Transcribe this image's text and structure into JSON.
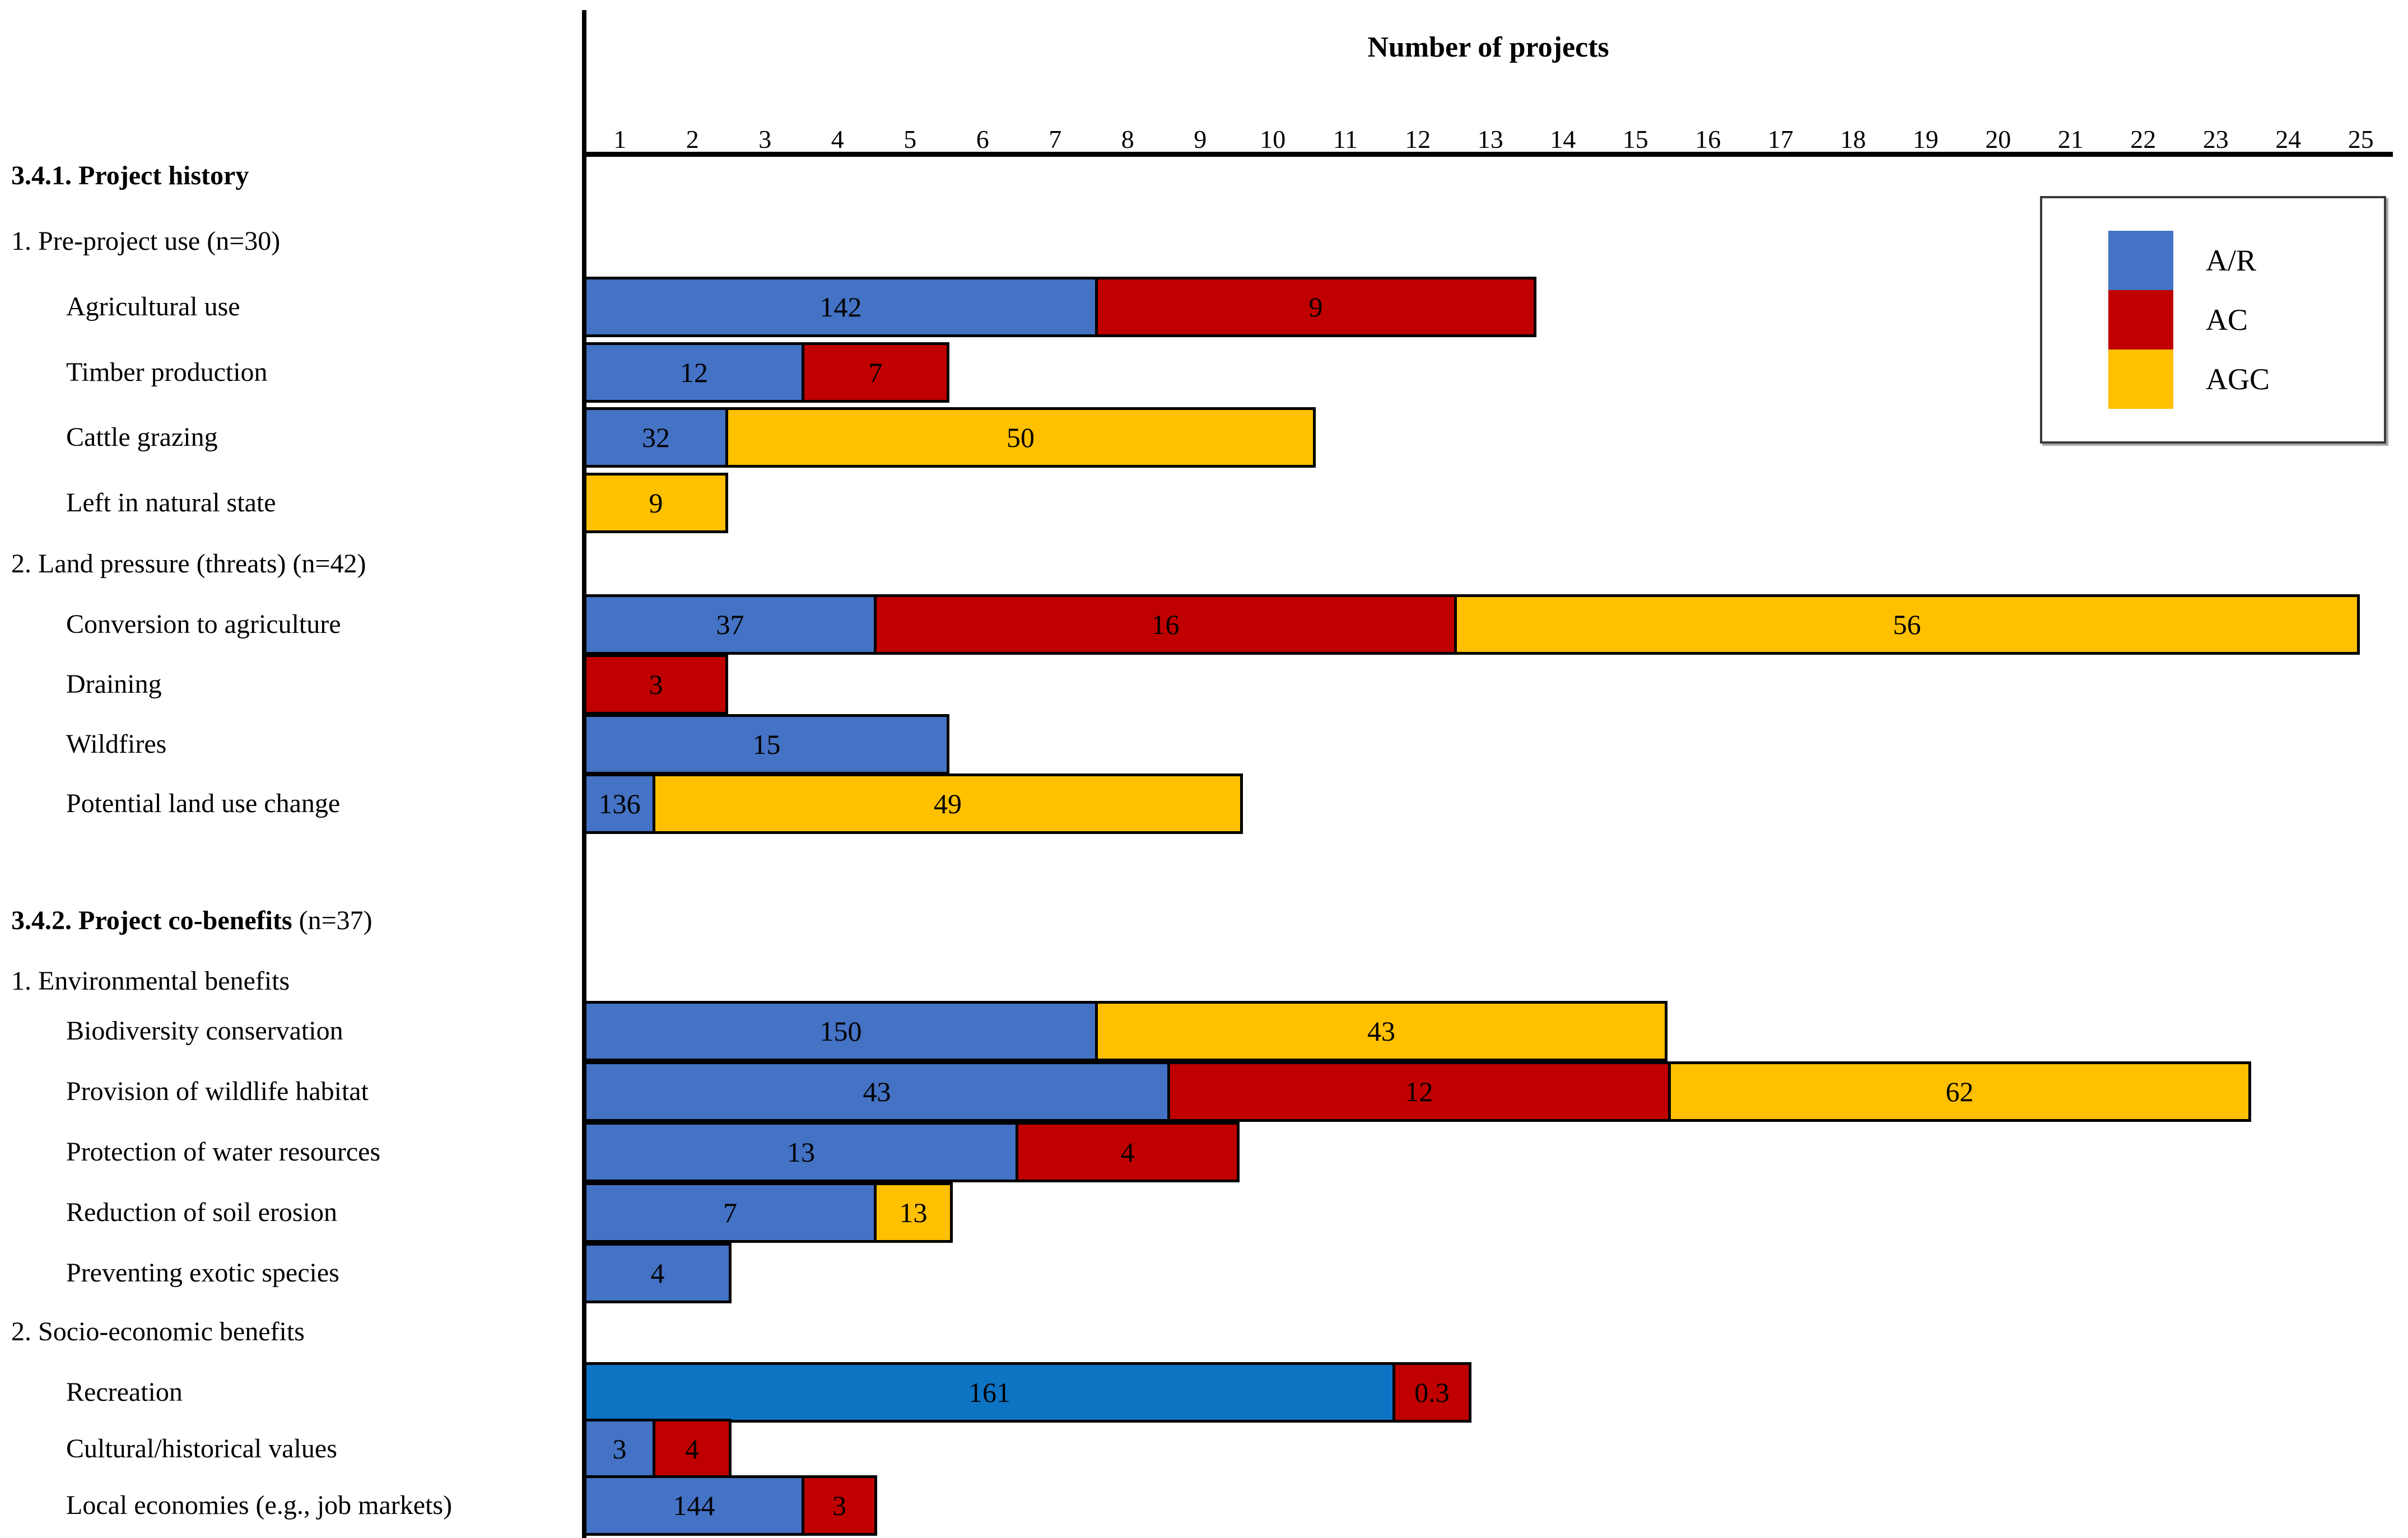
{
  "chart_data": {
    "type": "bar",
    "orientation": "horizontal-stacked",
    "title": "Number of projects",
    "xlabel": "Number of projects",
    "axis": {
      "min": 1,
      "max": 25,
      "ticks": [
        "1",
        "2",
        "3",
        "4",
        "5",
        "6",
        "7",
        "8",
        "9",
        "10",
        "11",
        "12",
        "13",
        "14",
        "15",
        "16",
        "17",
        "18",
        "19",
        "20",
        "21",
        "22",
        "23",
        "24",
        "25"
      ],
      "grid": false
    },
    "legend_position": "top-right",
    "legend": [
      {
        "label": "A/R",
        "color": "#4472C4"
      },
      {
        "label": "AC",
        "color": "#C00000"
      },
      {
        "label": "AGC",
        "color": "#FFC000"
      }
    ],
    "colors": {
      "bar_border": "#000000",
      "recreation_blue": "#0D74C4",
      "axis_line": "#000000"
    },
    "rows": [
      {
        "kind": "section",
        "bold": "3.4.1. Project history",
        "normal": ""
      },
      {
        "kind": "group",
        "label": "1. Pre-project use (n=30)"
      },
      {
        "kind": "bar",
        "label": "Agricultural use",
        "segments": [
          {
            "series": "A/R",
            "value": "142",
            "units": 7.05
          },
          {
            "series": "AC",
            "value": "9",
            "units": 6.05
          }
        ]
      },
      {
        "kind": "bar",
        "label": "Timber production",
        "segments": [
          {
            "series": "A/R",
            "value": "12",
            "units": 3.0
          },
          {
            "series": "AC",
            "value": "7",
            "units": 2.0
          }
        ]
      },
      {
        "kind": "bar",
        "label": "Cattle grazing",
        "segments": [
          {
            "series": "A/R",
            "value": "32",
            "units": 1.95
          },
          {
            "series": "AGC",
            "value": "50",
            "units": 8.1
          }
        ]
      },
      {
        "kind": "bar",
        "label": "Left in natural state",
        "segments": [
          {
            "series": "AGC",
            "value": "9",
            "units": 1.95
          }
        ]
      },
      {
        "kind": "group",
        "label": "2. Land pressure (threats) (n=42)"
      },
      {
        "kind": "bar",
        "label": "Conversion to agriculture",
        "segments": [
          {
            "series": "A/R",
            "value": "37",
            "units": 4.0
          },
          {
            "series": "AC",
            "value": "16",
            "units": 8.0
          },
          {
            "series": "AGC",
            "value": "56",
            "units": 12.45
          }
        ]
      },
      {
        "kind": "bar",
        "label": "Draining",
        "segments": [
          {
            "series": "AC",
            "value": "3",
            "units": 1.95
          }
        ]
      },
      {
        "kind": "bar",
        "label": "Wildfires",
        "segments": [
          {
            "series": "A/R",
            "value": "15",
            "units": 5.0
          }
        ]
      },
      {
        "kind": "bar",
        "label": "Potential land use change",
        "segments": [
          {
            "series": "A/R",
            "value": "136",
            "units": 0.95
          },
          {
            "series": "AGC",
            "value": "49",
            "units": 8.1
          }
        ]
      },
      {
        "kind": "section",
        "bold": "3.4.2. Project co-benefits",
        "normal": " (n=37)"
      },
      {
        "kind": "group",
        "label": "1. Environmental benefits"
      },
      {
        "kind": "bar",
        "label": "Biodiversity conservation",
        "segments": [
          {
            "series": "A/R",
            "value": "150",
            "units": 7.05
          },
          {
            "series": "AGC",
            "value": "43",
            "units": 7.85
          }
        ]
      },
      {
        "kind": "bar",
        "label": "Provision of wildlife habitat",
        "segments": [
          {
            "series": "A/R",
            "value": "43",
            "units": 8.05
          },
          {
            "series": "AC",
            "value": "12",
            "units": 6.9
          },
          {
            "series": "AGC",
            "value": "62",
            "units": 8.0
          }
        ]
      },
      {
        "kind": "bar",
        "label": "Protection of water resources",
        "segments": [
          {
            "series": "A/R",
            "value": "13",
            "units": 5.95
          },
          {
            "series": "AC",
            "value": "4",
            "units": 3.05
          }
        ]
      },
      {
        "kind": "bar",
        "label": "Reduction of soil erosion",
        "segments": [
          {
            "series": "A/R",
            "value": "7",
            "units": 4.0
          },
          {
            "series": "AGC",
            "value": "13",
            "units": 1.05
          }
        ]
      },
      {
        "kind": "bar",
        "label": "Preventing exotic species",
        "segments": [
          {
            "series": "A/R",
            "value": "4",
            "units": 2.0
          }
        ]
      },
      {
        "kind": "group",
        "label": "2. Socio-economic benefits"
      },
      {
        "kind": "bar",
        "label": "Recreation",
        "blue_variant": "recreation_blue",
        "segments": [
          {
            "series": "A/R",
            "value": "161",
            "units": 11.15,
            "color": "#0D74C4"
          },
          {
            "series": "AC",
            "value": "0.3",
            "units": 1.05
          }
        ]
      },
      {
        "kind": "bar",
        "label": "Cultural/historical values",
        "segments": [
          {
            "series": "A/R",
            "value": "3",
            "units": 0.95
          },
          {
            "series": "AC",
            "value": "4",
            "units": 1.05
          }
        ]
      },
      {
        "kind": "bar",
        "label": "Local economies (e.g., job markets)",
        "segments": [
          {
            "series": "A/R",
            "value": "144",
            "units": 3.0
          },
          {
            "series": "AC",
            "value": "3",
            "units": 1.0
          }
        ]
      }
    ]
  }
}
